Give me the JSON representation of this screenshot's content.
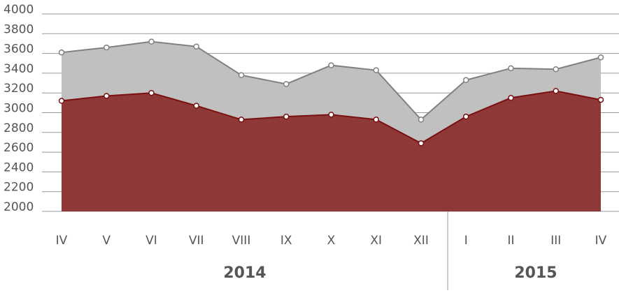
{
  "chart_data": {
    "type": "area",
    "categories": [
      "IV",
      "V",
      "VI",
      "VII",
      "VIII",
      "IX",
      "X",
      "XI",
      "XII",
      "I",
      "II",
      "III",
      "IV"
    ],
    "groups": [
      {
        "label": "2014",
        "span": 9
      },
      {
        "label": "2015",
        "span": 4
      }
    ],
    "series": [
      {
        "color": "#c0c0c0",
        "line_color": "#808080",
        "values": [
          3610,
          3660,
          3720,
          3670,
          3380,
          3290,
          3480,
          3430,
          2930,
          3330,
          3450,
          3440,
          3560
        ]
      },
      {
        "color": "#8e3838",
        "line_color": "#7a1010",
        "values": [
          3120,
          3170,
          3200,
          3070,
          2930,
          2960,
          2980,
          2930,
          2690,
          2960,
          3150,
          3220,
          3130
        ]
      }
    ],
    "ylim": [
      2000,
      4000
    ],
    "yticks": [
      2000,
      2200,
      2400,
      2600,
      2800,
      3000,
      3200,
      3400,
      3600,
      3800,
      4000
    ],
    "grid": true
  }
}
